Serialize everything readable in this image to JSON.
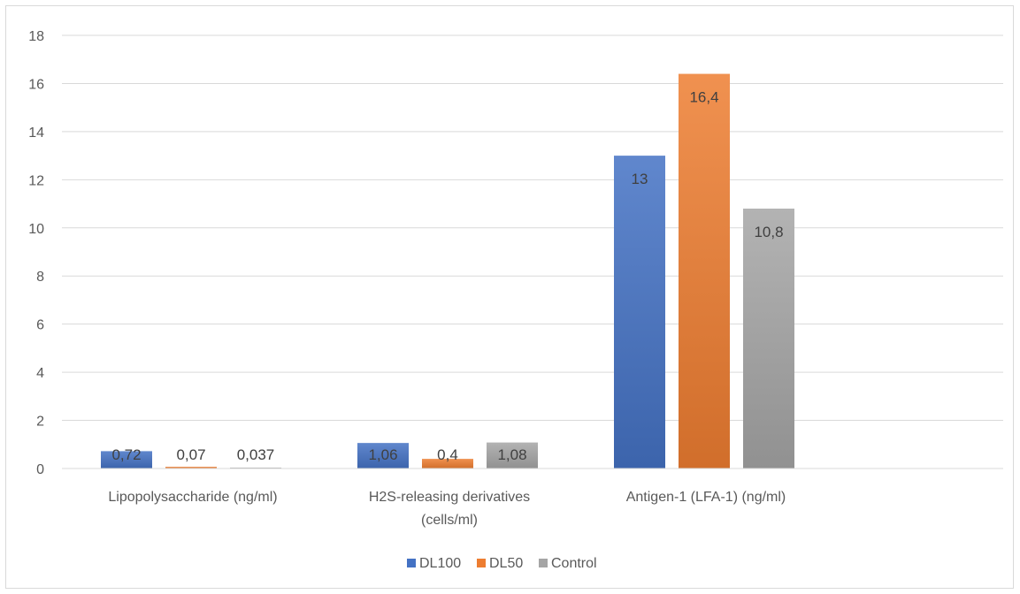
{
  "chart_data": {
    "type": "bar",
    "categories": [
      [
        "Lipopolysaccharide (ng/ml)"
      ],
      [
        "H2S-releasing derivatives",
        "(cells/ml)"
      ],
      [
        "Antigen-1 (LFA-1) (ng/ml)"
      ]
    ],
    "series": [
      {
        "name": "DL100",
        "color": "#4472c4",
        "values": [
          0.72,
          1.06,
          13
        ],
        "labels": [
          "0,72",
          "1,06",
          "13"
        ]
      },
      {
        "name": "DL50",
        "color": "#ed7d31",
        "values": [
          0.07,
          0.4,
          16.4
        ],
        "labels": [
          "0,07",
          "0,4",
          "16,4"
        ]
      },
      {
        "name": "Control",
        "color": "#a5a5a5",
        "values": [
          0.037,
          1.08,
          10.8
        ],
        "labels": [
          "0,037",
          "1,08",
          "10,8"
        ]
      }
    ],
    "y_ticks": [
      "0",
      "2",
      "4",
      "6",
      "8",
      "10",
      "12",
      "14",
      "16",
      "18"
    ],
    "ylim": [
      0,
      18
    ],
    "grid": true,
    "legend_position": "bottom",
    "title": "",
    "xlabel": "",
    "ylabel": ""
  }
}
